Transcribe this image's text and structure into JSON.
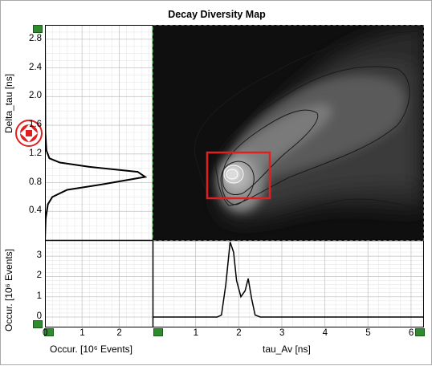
{
  "title": "Decay Diversity Map",
  "colors": {
    "map_background": "#111111",
    "plot_background": "#ffffff",
    "grid_major": "#c8c8c8",
    "grid_minor": "#e8e8e8",
    "curve": "#000000",
    "selection_box": "#e02020",
    "handle_green": "#2e8b2e",
    "cursor_red": "#e02020"
  },
  "left_panel": {
    "y_label": "Delta_tau [ns]",
    "y_ticks": [
      "2.8",
      "2.4",
      "2.0",
      "1.6",
      "1.2",
      "0.8",
      "0.4"
    ]
  },
  "bottom_left_panel": {
    "x_label": "Occur. [10⁶ Events]",
    "x_ticks": [
      "0",
      "1",
      "2"
    ],
    "y_label": "Occur. [10⁶ Events]",
    "y_ticks": [
      "3",
      "2",
      "1",
      "0"
    ]
  },
  "bottom_right_panel": {
    "x_label": "tau_Av [ns]",
    "x_ticks": [
      "1",
      "2",
      "3",
      "4",
      "5",
      "6"
    ]
  },
  "chart_data": [
    {
      "type": "line",
      "name": "delta_tau_histogram",
      "x": [
        0,
        0.02,
        0.08,
        0.2,
        0.6,
        1.6,
        2.7,
        2.5,
        1.2,
        0.4,
        0.12,
        0.04,
        0.01,
        0
      ],
      "y": [
        0,
        0.3,
        0.5,
        0.6,
        0.7,
        0.78,
        0.88,
        0.95,
        1.02,
        1.08,
        1.14,
        1.25,
        1.5,
        2.9
      ],
      "xlabel": "Occur. [10⁶ Events]",
      "ylabel": "Delta_tau [ns]",
      "xlim": [
        0,
        2.9
      ],
      "ylim": [
        0,
        3.0
      ]
    },
    {
      "type": "line",
      "name": "tau_av_histogram",
      "x": [
        0,
        1.5,
        1.6,
        1.7,
        1.8,
        1.88,
        1.95,
        2.05,
        2.15,
        2.22,
        2.3,
        2.38,
        2.5,
        6.3
      ],
      "y": [
        0,
        0,
        0.1,
        1.6,
        3.7,
        3.2,
        1.8,
        1.0,
        1.3,
        1.9,
        0.9,
        0.1,
        0,
        0
      ],
      "xlabel": "tau_Av [ns]",
      "ylabel": "Occur. [10⁶ Events]",
      "xlim": [
        0,
        6.3
      ],
      "ylim": [
        0,
        4.0
      ]
    }
  ]
}
